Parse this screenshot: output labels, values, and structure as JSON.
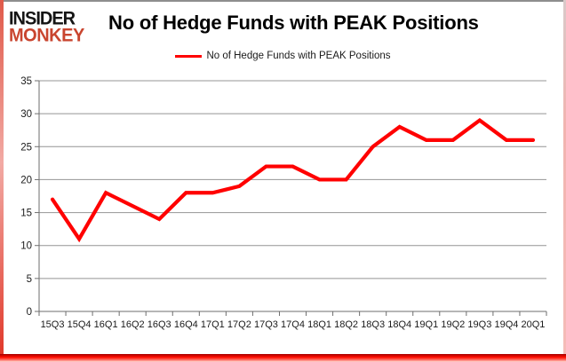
{
  "logo": {
    "line1": "INSIDER",
    "line2": "MONKEY"
  },
  "chart_data": {
    "type": "line",
    "title": "No of Hedge Funds with PEAK Positions",
    "legend_label": "No of Hedge Funds with PEAK Positions",
    "categories": [
      "15Q3",
      "15Q4",
      "16Q1",
      "16Q2",
      "16Q3",
      "16Q4",
      "17Q1",
      "17Q2",
      "17Q3",
      "17Q4",
      "18Q1",
      "18Q2",
      "18Q3",
      "18Q4",
      "19Q1",
      "19Q2",
      "19Q3",
      "19Q4",
      "20Q1"
    ],
    "series": [
      {
        "name": "No of Hedge Funds with PEAK Positions",
        "values": [
          17,
          11,
          18,
          16,
          14,
          18,
          18,
          19,
          22,
          22,
          20,
          20,
          25,
          28,
          26,
          26,
          29,
          26,
          26
        ]
      }
    ],
    "ylim": [
      0,
      35
    ],
    "yticks": [
      0,
      5,
      10,
      15,
      20,
      25,
      30,
      35
    ],
    "grid": true,
    "legend_position": "top-center",
    "line_color": "#ff0000",
    "gridline_color": "#949494",
    "axis_color": "#6e6e6e",
    "label_color": "#1a1a1a"
  }
}
